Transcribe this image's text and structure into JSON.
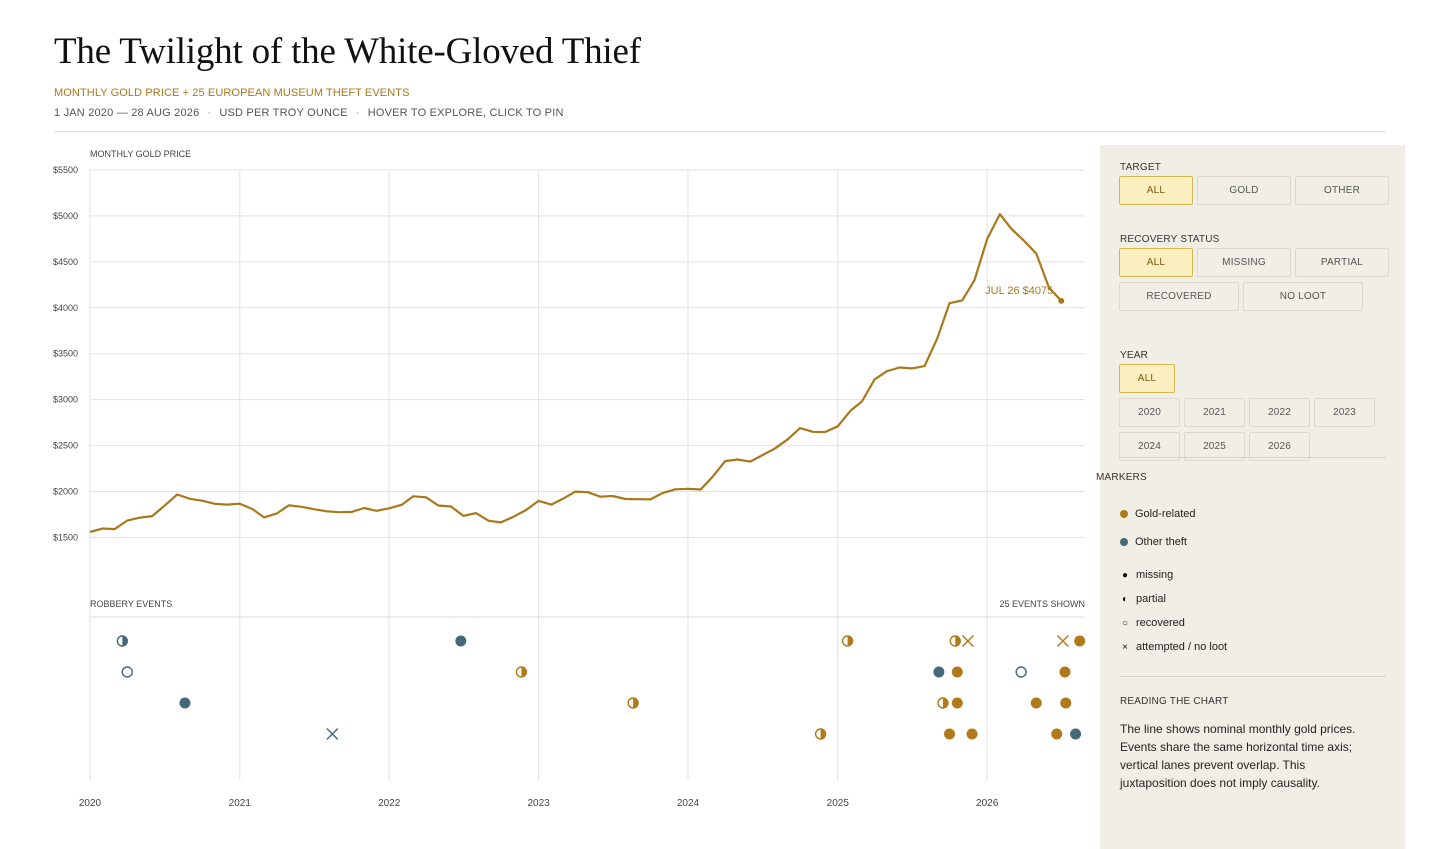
{
  "header": {
    "title": "The Twilight of the White-Gloved Thief",
    "subtitle": "MONTHLY GOLD PRICE + 25 EUROPEAN MUSEUM THEFT EVENTS",
    "meta": [
      "1 JAN 2020 — 28 AUG 2026",
      "USD PER TROY OUNCE",
      "HOVER TO EXPLORE, CLICK TO PIN"
    ]
  },
  "chart_data": [
    {
      "type": "line",
      "title": "MONTHLY GOLD PRICE",
      "xlabel": "",
      "ylabel": "",
      "ylim": [
        1200,
        5500
      ],
      "xlim": [
        "2020-01-01",
        "2026-08-28"
      ],
      "yticks": [
        1500,
        2000,
        2500,
        3000,
        3500,
        4000,
        4500,
        5000,
        5500
      ],
      "ytick_labels": [
        "$1500",
        "$2000",
        "$2500",
        "$3000",
        "$3500",
        "$4000",
        "$4500",
        "$5000",
        "$5500"
      ],
      "xticks": [
        "2020",
        "2021",
        "2022",
        "2023",
        "2024",
        "2025",
        "2026"
      ],
      "grid": true,
      "color": "#a8781a",
      "series": [
        {
          "x": [
            "2020-01",
            "2020-02",
            "2020-03",
            "2020-04",
            "2020-05",
            "2020-06",
            "2020-07",
            "2020-08",
            "2020-09",
            "2020-10",
            "2020-11",
            "2020-12",
            "2021-01",
            "2021-02",
            "2021-03",
            "2021-04",
            "2021-05",
            "2021-06",
            "2021-07",
            "2021-08",
            "2021-09",
            "2021-10",
            "2021-11",
            "2021-12",
            "2022-01",
            "2022-02",
            "2022-03",
            "2022-04",
            "2022-05",
            "2022-06",
            "2022-07",
            "2022-08",
            "2022-09",
            "2022-10",
            "2022-11",
            "2022-12",
            "2023-01",
            "2023-02",
            "2023-03",
            "2023-04",
            "2023-05",
            "2023-06",
            "2023-07",
            "2023-08",
            "2023-09",
            "2023-10",
            "2023-11",
            "2023-12",
            "2024-01",
            "2024-02",
            "2024-03",
            "2024-04",
            "2024-05",
            "2024-06",
            "2024-07",
            "2024-08",
            "2024-09",
            "2024-10",
            "2024-11",
            "2024-12",
            "2025-01",
            "2025-02",
            "2025-03",
            "2025-04",
            "2025-05",
            "2025-06",
            "2025-07",
            "2025-08",
            "2025-09",
            "2025-10",
            "2025-11",
            "2025-12",
            "2026-01",
            "2026-02",
            "2026-03",
            "2026-04",
            "2026-05",
            "2026-06",
            "2026-07"
          ],
          "y": [
            1560,
            1597,
            1591,
            1683,
            1715,
            1732,
            1846,
            1968,
            1921,
            1900,
            1866,
            1858,
            1867,
            1808,
            1718,
            1760,
            1850,
            1834,
            1807,
            1785,
            1775,
            1777,
            1821,
            1790,
            1817,
            1856,
            1948,
            1937,
            1848,
            1837,
            1734,
            1765,
            1681,
            1664,
            1726,
            1798,
            1898,
            1858,
            1920,
            1999,
            1992,
            1943,
            1951,
            1918,
            1916,
            1914,
            1985,
            2024,
            2030,
            2022,
            2159,
            2331,
            2349,
            2326,
            2396,
            2470,
            2570,
            2690,
            2650,
            2648,
            2710,
            2880,
            2980,
            3220,
            3310,
            3350,
            3340,
            3365,
            3665,
            4050,
            4080,
            4300,
            4750,
            5020,
            4860,
            4730,
            4590,
            4220,
            4075
          ]
        }
      ],
      "annotations": [
        {
          "x": "2026-07",
          "y": 4075,
          "text": "JUL 26  $4075"
        }
      ]
    },
    {
      "type": "scatter",
      "title": "ROBBERY EVENTS",
      "count_label": "25 EVENTS SHOWN",
      "xlim": [
        "2020-01-01",
        "2026-08-28"
      ],
      "lanes": 4,
      "events": [
        {
          "date": "2020-03-20",
          "lane": 1,
          "target": "other",
          "status": "partial"
        },
        {
          "date": "2020-04-01",
          "lane": 2,
          "target": "other",
          "status": "recovered"
        },
        {
          "date": "2020-08-20",
          "lane": 3,
          "target": "other",
          "status": "missing"
        },
        {
          "date": "2021-08-15",
          "lane": 4,
          "target": "other",
          "status": "no-loot"
        },
        {
          "date": "2022-06-25",
          "lane": 1,
          "target": "other",
          "status": "missing"
        },
        {
          "date": "2022-11-20",
          "lane": 2,
          "target": "gold",
          "status": "partial"
        },
        {
          "date": "2023-08-20",
          "lane": 3,
          "target": "gold",
          "status": "partial"
        },
        {
          "date": "2024-11-20",
          "lane": 4,
          "target": "gold",
          "status": "partial"
        },
        {
          "date": "2025-01-25",
          "lane": 1,
          "target": "gold",
          "status": "partial"
        },
        {
          "date": "2025-09-05",
          "lane": 2,
          "target": "other",
          "status": "missing"
        },
        {
          "date": "2025-09-15",
          "lane": 3,
          "target": "gold",
          "status": "partial"
        },
        {
          "date": "2025-10-01",
          "lane": 4,
          "target": "gold",
          "status": "missing"
        },
        {
          "date": "2025-10-15",
          "lane": 1,
          "target": "gold",
          "status": "partial"
        },
        {
          "date": "2025-10-20",
          "lane": 2,
          "target": "gold",
          "status": "missing"
        },
        {
          "date": "2025-10-20",
          "lane": 3,
          "target": "gold",
          "status": "missing"
        },
        {
          "date": "2025-11-15",
          "lane": 1,
          "target": "gold",
          "status": "no-loot"
        },
        {
          "date": "2025-11-25",
          "lane": 4,
          "target": "gold",
          "status": "missing"
        },
        {
          "date": "2026-03-25",
          "lane": 2,
          "target": "other",
          "status": "recovered"
        },
        {
          "date": "2026-05-01",
          "lane": 3,
          "target": "gold",
          "status": "missing"
        },
        {
          "date": "2026-06-20",
          "lane": 4,
          "target": "gold",
          "status": "missing"
        },
        {
          "date": "2026-07-05",
          "lane": 1,
          "target": "gold",
          "status": "no-loot"
        },
        {
          "date": "2026-07-10",
          "lane": 2,
          "target": "gold",
          "status": "missing"
        },
        {
          "date": "2026-07-12",
          "lane": 3,
          "target": "gold",
          "status": "missing"
        },
        {
          "date": "2026-08-05",
          "lane": 4,
          "target": "other",
          "status": "missing"
        },
        {
          "date": "2026-08-15",
          "lane": 1,
          "target": "gold",
          "status": "missing"
        }
      ]
    }
  ],
  "colors": {
    "gold": "#b07a1a",
    "other": "#456979",
    "line": "#a8781a"
  },
  "filters": {
    "target": {
      "label": "TARGET",
      "options": [
        "ALL",
        "GOLD",
        "OTHER"
      ],
      "selected": "ALL"
    },
    "recovery": {
      "label": "RECOVERY STATUS",
      "options": [
        "ALL",
        "MISSING",
        "PARTIAL",
        "RECOVERED",
        "NO LOOT"
      ],
      "selected": "ALL"
    },
    "year": {
      "label": "YEAR",
      "options": [
        "ALL",
        "2020",
        "2021",
        "2022",
        "2023",
        "2024",
        "2025",
        "2026"
      ],
      "selected": "ALL"
    }
  },
  "legend": {
    "label": "MARKERS",
    "items": {
      "gold": "Gold-related",
      "other": "Other theft",
      "missing": "missing",
      "partial": "partial",
      "recovered": "recovered",
      "noloot": "attempted / no loot"
    }
  },
  "reading": {
    "label": "READING THE CHART",
    "text": "The line shows nominal monthly gold prices. Events share the same horizontal time axis; vertical lanes prevent overlap. This juxtaposition does not imply causality."
  }
}
